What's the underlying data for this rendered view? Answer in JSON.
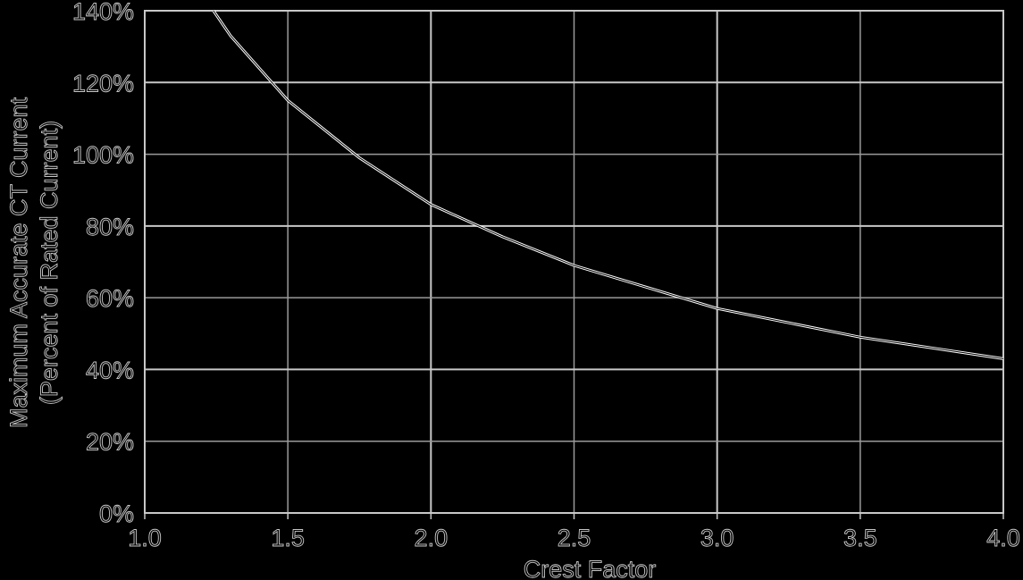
{
  "chart_data": {
    "type": "line",
    "title": "",
    "xlabel": "Crest Factor",
    "ylabel_line1": "Maximum Accurate CT Current",
    "ylabel_line2": "(Percent of Rated Current)",
    "xlim": [
      1.0,
      4.0
    ],
    "ylim": [
      0,
      140
    ],
    "grid": true,
    "x_ticks": [
      "1.0",
      "1.5",
      "2.0",
      "2.5",
      "3.0",
      "3.5",
      "4.0"
    ],
    "y_ticks": [
      "0%",
      "20%",
      "40%",
      "60%",
      "80%",
      "100%",
      "120%",
      "140%"
    ],
    "series": [
      {
        "name": "Maximum Accurate CT Current",
        "x": [
          1.24,
          1.3,
          1.4,
          1.5,
          1.75,
          2.0,
          2.25,
          2.5,
          2.75,
          3.0,
          3.25,
          3.5,
          3.75,
          4.0
        ],
        "y": [
          140,
          133,
          124,
          115,
          99,
          86,
          77,
          69,
          63,
          57,
          53,
          49,
          46,
          43
        ]
      }
    ]
  }
}
